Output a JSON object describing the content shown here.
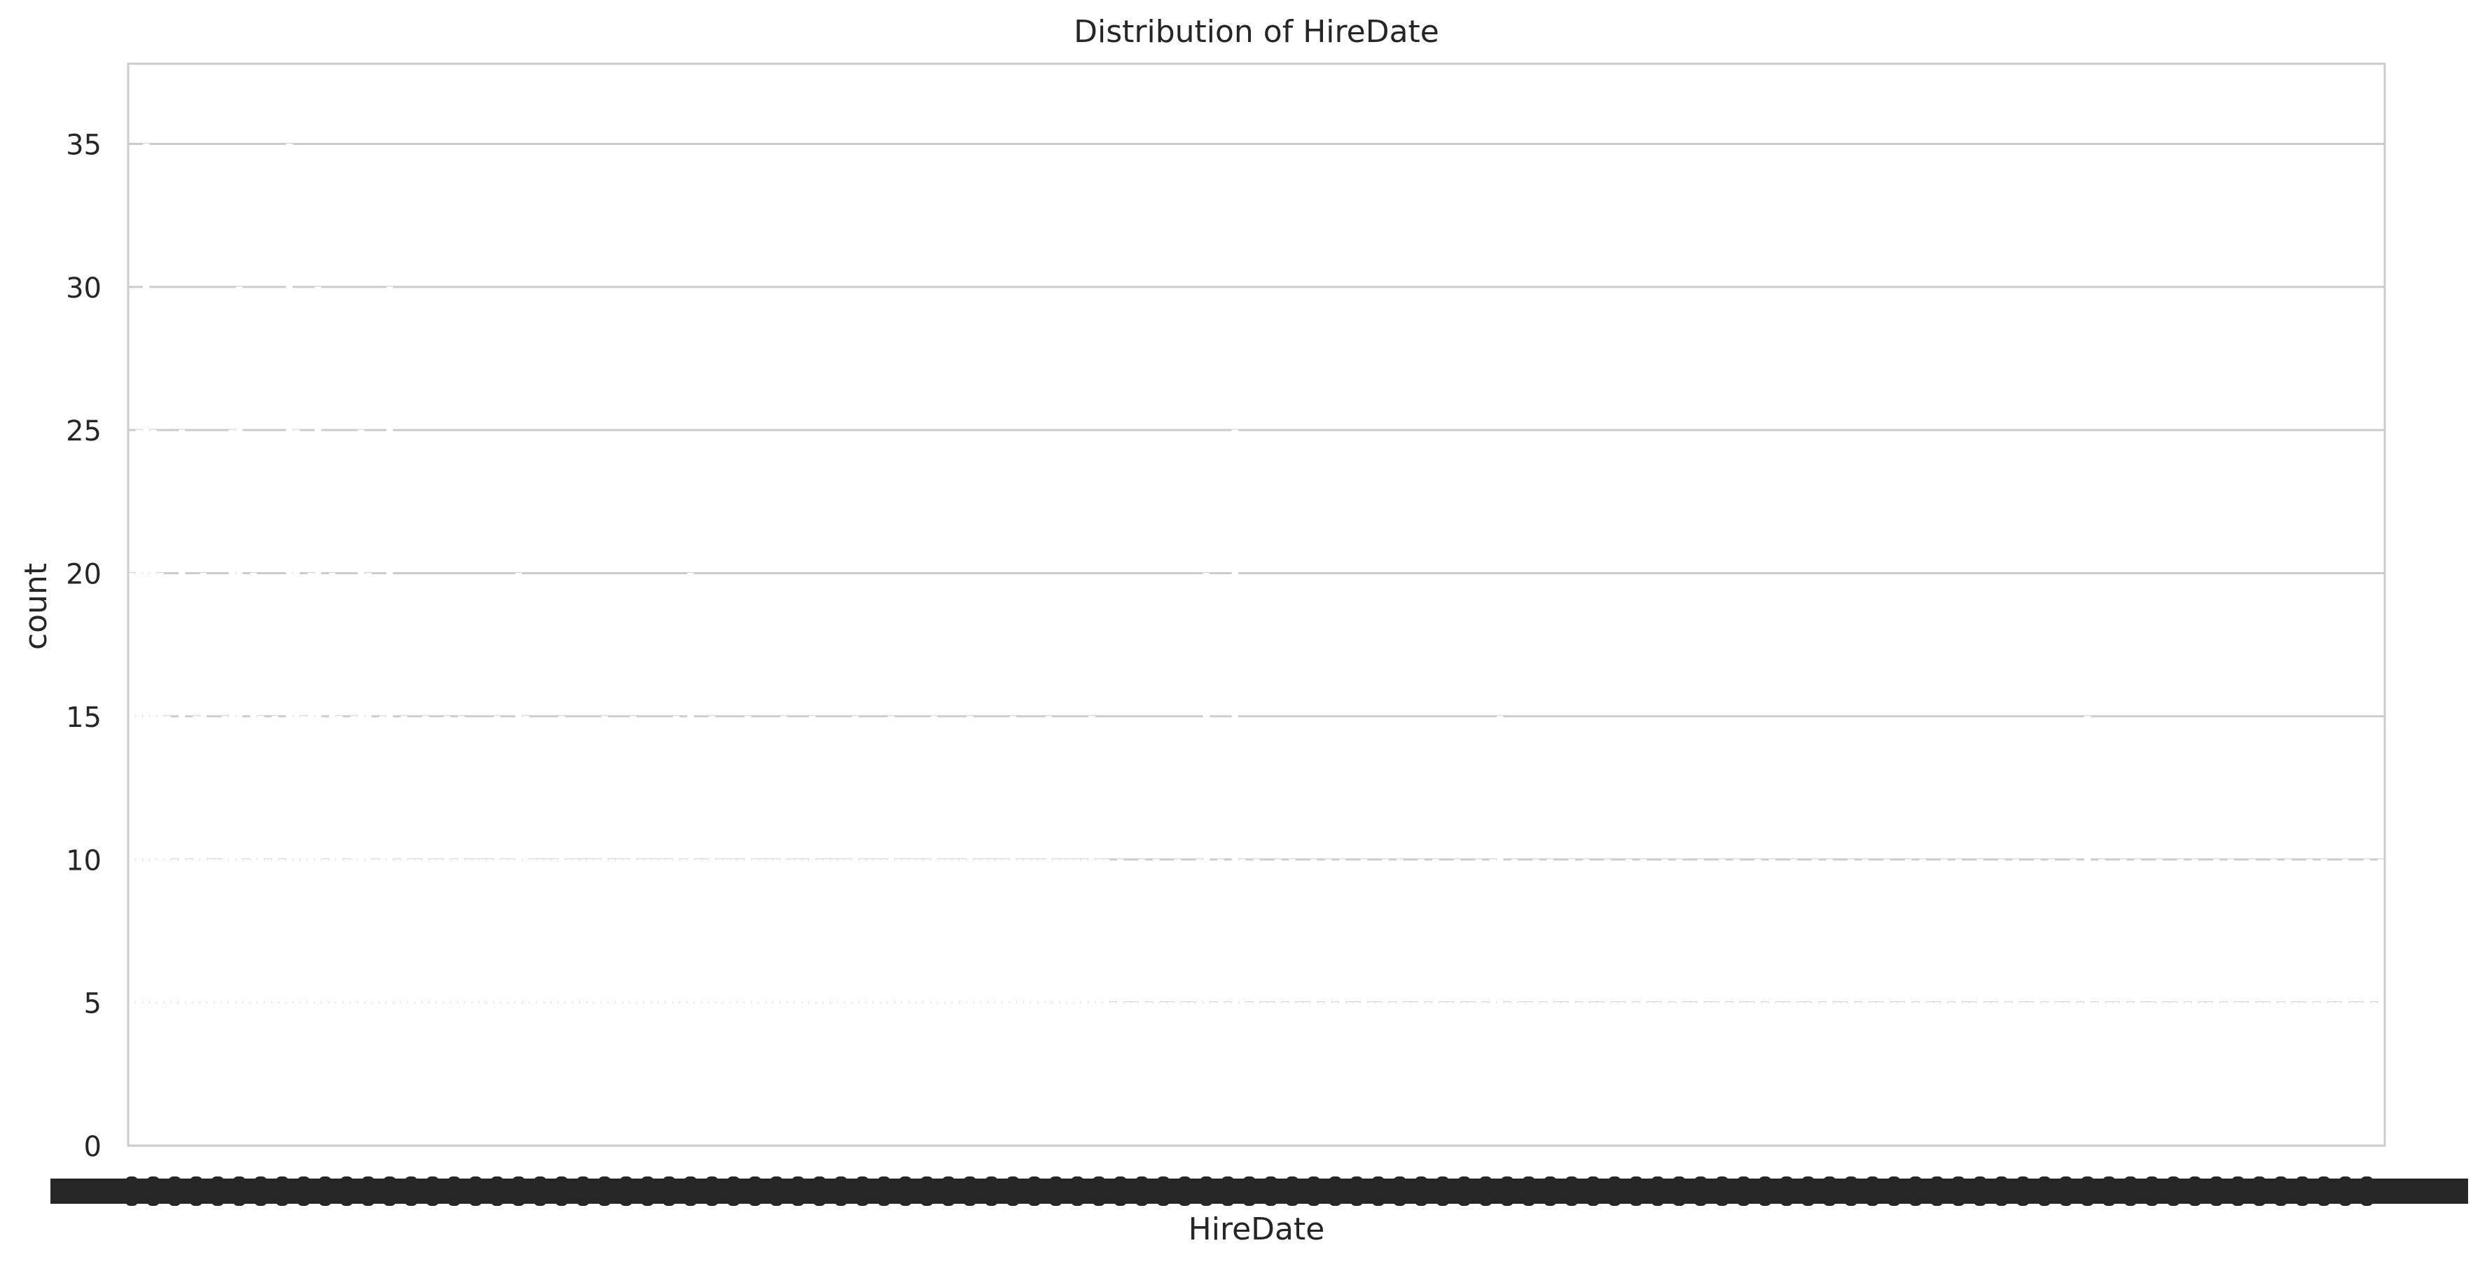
{
  "chart_data": {
    "type": "bar",
    "title": "Distribution of HireDate",
    "xlabel": "HireDate",
    "ylabel": "count",
    "ylim": [
      0,
      37.8
    ],
    "yticks": [
      0,
      5,
      10,
      15,
      20,
      25,
      30,
      35
    ],
    "grid": true,
    "legend": "none",
    "x_tick_labels_legible": false,
    "category_count": 315,
    "values": [
      20,
      25,
      35,
      25,
      20,
      15,
      10,
      25,
      10,
      15,
      20,
      10,
      10,
      15,
      25,
      30,
      10,
      20,
      15,
      10,
      15,
      10,
      35,
      25,
      15,
      20,
      30,
      10,
      20,
      15,
      10,
      15,
      25,
      20,
      10,
      15,
      30,
      10,
      15,
      10,
      10,
      15,
      10,
      10,
      15,
      10,
      15,
      10,
      10,
      10,
      10,
      15,
      10,
      10,
      20,
      15,
      10,
      10,
      10,
      10,
      15,
      10,
      10,
      10,
      10,
      10,
      15,
      10,
      10,
      10,
      15,
      10,
      10,
      10,
      10,
      10,
      15,
      10,
      20,
      10,
      10,
      15,
      10,
      10,
      10,
      10,
      15,
      10,
      10,
      10,
      10,
      15,
      10,
      10,
      10,
      15,
      10,
      10,
      10,
      10,
      10,
      15,
      10,
      10,
      10,
      10,
      15,
      10,
      10,
      10,
      10,
      10,
      15,
      10,
      10,
      10,
      10,
      15,
      10,
      10,
      10,
      10,
      10,
      15,
      10,
      10,
      10,
      10,
      15,
      10,
      10,
      10,
      10,
      10,
      15,
      10,
      10,
      5,
      10,
      5,
      5,
      10,
      5,
      10,
      5,
      5,
      10,
      5,
      5,
      10,
      20,
      5,
      10,
      5,
      25,
      10,
      5,
      10,
      5,
      5,
      10,
      5,
      10,
      5,
      5,
      10,
      5,
      10,
      5,
      10,
      5,
      5,
      10,
      5,
      5,
      10,
      5,
      10,
      5,
      5,
      10,
      5,
      10,
      5,
      5,
      10,
      5,
      5,
      10,
      5,
      10,
      15,
      5,
      10,
      5,
      5,
      10,
      5,
      10,
      5,
      5,
      10,
      5,
      10,
      5,
      5,
      10,
      5,
      5,
      10,
      5,
      10,
      5,
      5,
      10,
      5,
      10,
      5,
      5,
      10,
      5,
      5,
      10,
      5,
      10,
      5,
      5,
      10,
      5,
      10,
      5,
      5,
      10,
      5,
      5,
      10,
      5,
      10,
      5,
      5,
      10,
      5,
      10,
      5,
      5,
      10,
      5,
      5,
      10,
      5,
      10,
      5,
      5,
      10,
      5,
      10,
      5,
      5,
      10,
      5,
      5,
      10,
      5,
      10,
      5,
      5,
      10,
      5,
      10,
      5,
      5,
      10,
      5,
      15,
      5,
      10,
      5,
      5,
      10,
      5,
      10,
      5,
      5,
      10,
      5,
      5,
      10,
      5,
      10,
      5,
      5,
      10,
      5,
      10,
      5,
      5,
      10,
      5,
      5,
      10,
      5,
      10,
      5,
      5,
      10,
      5,
      10,
      5,
      5,
      10,
      5,
      5,
      10,
      5,
      10
    ],
    "bar_color": "#ffffff",
    "bar_edge_color": "#ffffff",
    "grid_color": "#cccccc",
    "spine_color": "#cccccc",
    "text_color": "#262626"
  }
}
